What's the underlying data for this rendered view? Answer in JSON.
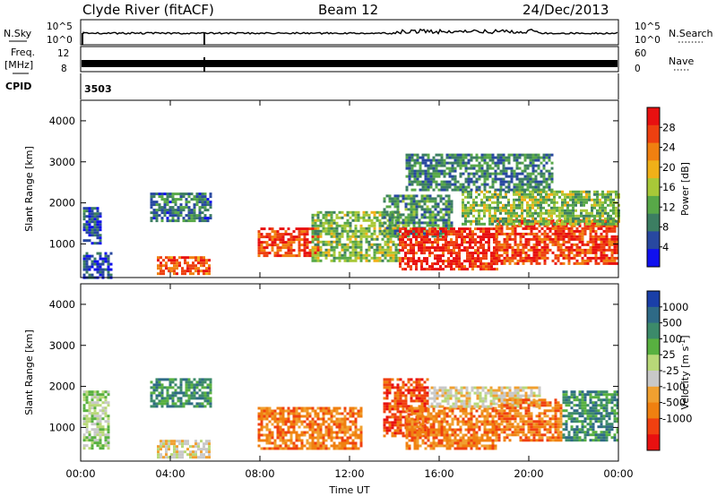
{
  "header": {
    "station": "Clyde River (fitACF)",
    "beam": "Beam 12",
    "date": "24/Dec/2013"
  },
  "side_labels": {
    "nsky": "N.Sky",
    "nsearch": "N.Search",
    "freq_line1": "Freq.",
    "freq_line2": "[MHz]",
    "nave": "Nave",
    "cpid": "CPID",
    "cpid_value": "3503"
  },
  "top_axes": {
    "noise_left_ticks": [
      "10^5",
      "10^0"
    ],
    "noise_right_ticks": [
      "10^5",
      "10^0"
    ],
    "freq_left_ticks": [
      "12",
      "8"
    ],
    "nave_right_ticks": [
      "60",
      "0"
    ]
  },
  "chart_data": [
    {
      "type": "heatmap",
      "name": "power-panel",
      "ylabel": "Slant Range [km]",
      "xlabel": "",
      "xlim_hours": [
        0,
        24
      ],
      "ylim": [
        180,
        4500
      ],
      "yticks": [
        1000,
        2000,
        3000,
        4000
      ],
      "colorbar": {
        "label": "Power [dB]",
        "ticks": [
          "4",
          "8",
          "12",
          "16",
          "20",
          "24",
          "28"
        ],
        "colors": [
          "#1010ee",
          "#2848a0",
          "#3c7e62",
          "#58a848",
          "#a8c838",
          "#f0b018",
          "#f08010",
          "#ee4010",
          "#e81010"
        ],
        "range": [
          0,
          32
        ]
      },
      "patches": [
        {
          "t0": 0.1,
          "t1": 0.9,
          "r0": 1000,
          "r1": 1900,
          "v": 6
        },
        {
          "t0": 0.1,
          "t1": 1.4,
          "r0": 200,
          "r1": 800,
          "v": 5
        },
        {
          "t0": 3.1,
          "t1": 5.8,
          "r0": 1550,
          "r1": 2250,
          "v": 8
        },
        {
          "t0": 3.4,
          "t1": 5.8,
          "r0": 250,
          "r1": 700,
          "v": 26
        },
        {
          "t0": 7.9,
          "t1": 10.6,
          "r0": 700,
          "r1": 1400,
          "v": 27
        },
        {
          "t0": 10.3,
          "t1": 14.2,
          "r0": 600,
          "r1": 1800,
          "v": 14
        },
        {
          "t0": 13.5,
          "t1": 16.6,
          "r0": 1200,
          "r1": 2200,
          "v": 10
        },
        {
          "t0": 14.2,
          "t1": 18.6,
          "r0": 400,
          "r1": 1400,
          "v": 29
        },
        {
          "t0": 18.5,
          "t1": 24.0,
          "r0": 500,
          "r1": 1600,
          "v": 27
        },
        {
          "t0": 17.0,
          "t1": 24.0,
          "r0": 1500,
          "r1": 2300,
          "v": 14
        },
        {
          "t0": 14.5,
          "t1": 21.0,
          "r0": 2300,
          "r1": 3200,
          "v": 9
        }
      ]
    },
    {
      "type": "heatmap",
      "name": "velocity-panel",
      "ylabel": "Slant Range [km]",
      "xlabel": "Time UT",
      "xlim_hours": [
        0,
        24
      ],
      "xticks": [
        "00:00",
        "04:00",
        "08:00",
        "12:00",
        "16:00",
        "20:00",
        "00:00"
      ],
      "ylim": [
        180,
        4500
      ],
      "yticks": [
        1000,
        2000,
        3000,
        4000
      ],
      "colorbar": {
        "label": "Velocity [m s^-1]",
        "ticks": [
          "1000",
          "500",
          "100",
          "25",
          "-25",
          "-100",
          "-500",
          "-1000"
        ],
        "colors": [
          "#1a3fa8",
          "#2e6a86",
          "#3c8a6a",
          "#58b040",
          "#b8d878",
          "#c8c8c8",
          "#f0a030",
          "#f08010",
          "#f04010",
          "#e81010"
        ]
      },
      "patches": [
        {
          "t0": 0.1,
          "t1": 1.2,
          "r0": 500,
          "r1": 1900,
          "v": 4
        },
        {
          "t0": 3.1,
          "t1": 5.8,
          "r0": 1500,
          "r1": 2200,
          "v": 2
        },
        {
          "t0": 3.4,
          "t1": 5.8,
          "r0": 250,
          "r1": 700,
          "v": 5
        },
        {
          "t0": 7.9,
          "t1": 12.5,
          "r0": 500,
          "r1": 1500,
          "v": 7
        },
        {
          "t0": 13.5,
          "t1": 15.5,
          "r0": 800,
          "r1": 2200,
          "v": 8
        },
        {
          "t0": 14.5,
          "t1": 18.5,
          "r0": 500,
          "r1": 1500,
          "v": 7
        },
        {
          "t0": 15.5,
          "t1": 20.5,
          "r0": 1500,
          "r1": 2000,
          "v": 5
        },
        {
          "t0": 18.5,
          "t1": 21.5,
          "r0": 700,
          "r1": 1700,
          "v": 7
        },
        {
          "t0": 21.5,
          "t1": 24.0,
          "r0": 700,
          "r1": 1900,
          "v": 2
        }
      ]
    }
  ]
}
